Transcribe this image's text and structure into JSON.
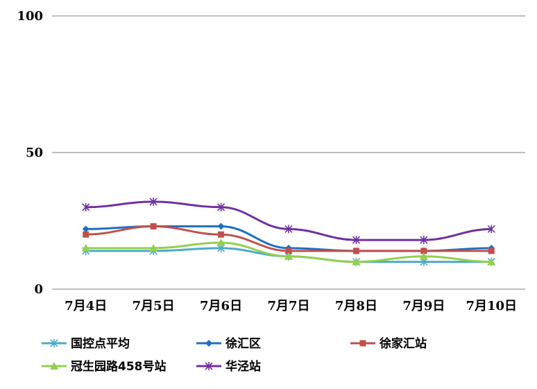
{
  "chart_data": {
    "type": "line",
    "title": "",
    "xlabel": "",
    "ylabel": "",
    "ylim": [
      0,
      100
    ],
    "yticks": [
      0,
      50,
      100
    ],
    "grid": true,
    "legend_position": "bottom",
    "categories": [
      "7月4日",
      "7月5日",
      "7月6日",
      "7月7日",
      "7月8日",
      "7月9日",
      "7月10日"
    ],
    "series": [
      {
        "name": "国控点平均",
        "color": "#4BACC6",
        "marker": "asterisk",
        "values": [
          14,
          14,
          15,
          12,
          10,
          10,
          10
        ]
      },
      {
        "name": "徐汇区",
        "color": "#1F6FBF",
        "marker": "diamond",
        "values": [
          22,
          23,
          23,
          15,
          14,
          14,
          15
        ]
      },
      {
        "name": "徐家汇站",
        "color": "#C0504D",
        "marker": "square",
        "values": [
          20,
          23,
          20,
          14,
          14,
          14,
          14
        ]
      },
      {
        "name": "冠生园路458号站",
        "color": "#92D050",
        "marker": "triangle",
        "values": [
          15,
          15,
          17,
          12,
          10,
          12,
          10
        ]
      },
      {
        "name": "华泾站",
        "color": "#7030A0",
        "marker": "asterisk",
        "values": [
          30,
          32,
          30,
          22,
          18,
          18,
          22
        ]
      }
    ]
  }
}
